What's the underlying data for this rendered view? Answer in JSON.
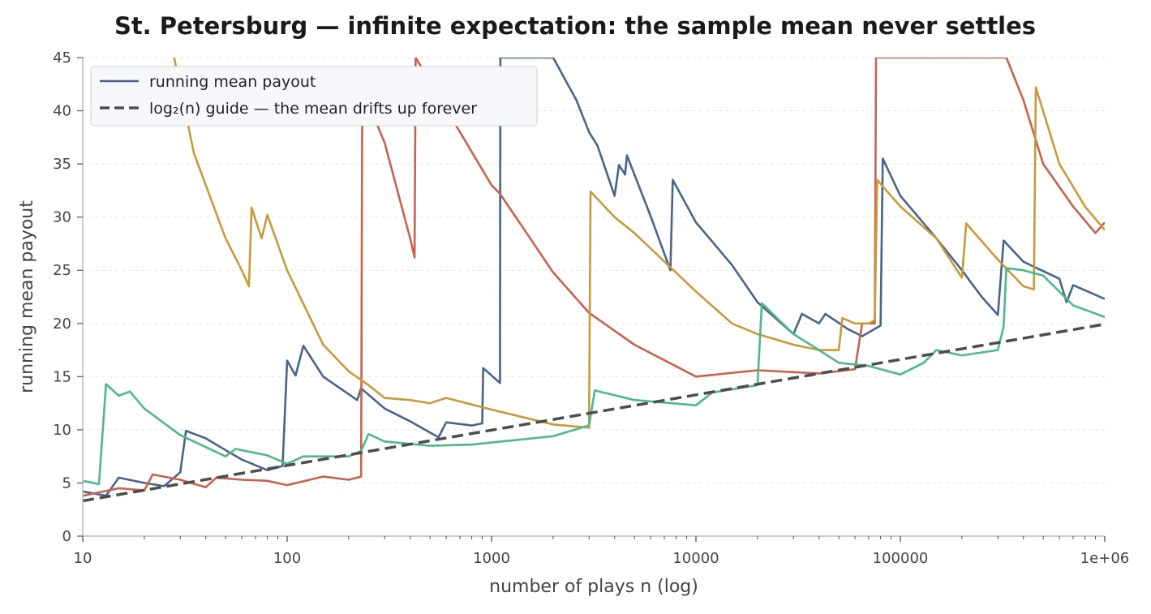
{
  "chart_data": {
    "type": "line",
    "title": "St. Petersburg — infinite expectation: the sample mean never settles",
    "xlabel": "number of plays n (log)",
    "ylabel": "running mean payout",
    "x_scale": "log",
    "xlim": [
      10,
      1000000
    ],
    "ylim": [
      0,
      45
    ],
    "x_ticks": [
      10,
      100,
      1000,
      10000,
      100000,
      1000000
    ],
    "x_tick_labels": [
      "10",
      "100",
      "1000",
      "10000",
      "100000",
      "1e+06"
    ],
    "y_ticks": [
      0,
      5,
      10,
      15,
      20,
      25,
      30,
      35,
      40,
      45
    ],
    "y_tick_labels": [
      "0",
      "5",
      "10",
      "15",
      "20",
      "25",
      "30",
      "35",
      "40",
      "45"
    ],
    "grid": "horizontal dashed",
    "legend_position": "top-left",
    "legend": [
      "running mean payout",
      "log₂(n) guide — the mean drifts up forever"
    ],
    "series": [
      {
        "name": "running mean payout",
        "color": "#4a6388",
        "points": [
          [
            10,
            4.2
          ],
          [
            13,
            3.8
          ],
          [
            15,
            5.5
          ],
          [
            20,
            5.0
          ],
          [
            25,
            4.7
          ],
          [
            30,
            6.0
          ],
          [
            32,
            9.9
          ],
          [
            40,
            9.2
          ],
          [
            45,
            8.6
          ],
          [
            60,
            7.2
          ],
          [
            80,
            6.2
          ],
          [
            95,
            6.6
          ],
          [
            100,
            16.5
          ],
          [
            110,
            15.1
          ],
          [
            120,
            17.9
          ],
          [
            150,
            15.0
          ],
          [
            220,
            12.8
          ],
          [
            230,
            13.9
          ],
          [
            300,
            12.0
          ],
          [
            400,
            10.8
          ],
          [
            550,
            9.3
          ],
          [
            600,
            10.7
          ],
          [
            800,
            10.4
          ],
          [
            900,
            10.6
          ],
          [
            910,
            15.8
          ],
          [
            1100,
            14.4
          ],
          [
            1105,
            45
          ],
          [
            2000,
            45
          ],
          [
            2600,
            41.0
          ],
          [
            3000,
            38.0
          ],
          [
            3300,
            36.7
          ],
          [
            4000,
            32.0
          ],
          [
            4200,
            34.9
          ],
          [
            4500,
            34.0
          ],
          [
            4600,
            35.8
          ],
          [
            6000,
            30.1
          ],
          [
            7500,
            25.0
          ],
          [
            7700,
            33.5
          ],
          [
            10000,
            29.5
          ],
          [
            15000,
            25.5
          ],
          [
            20000,
            22.0
          ],
          [
            30000,
            19.0
          ],
          [
            33000,
            20.9
          ],
          [
            40000,
            20.0
          ],
          [
            43000,
            20.9
          ],
          [
            55000,
            19.5
          ],
          [
            65000,
            18.8
          ],
          [
            80000,
            19.8
          ],
          [
            82000,
            35.5
          ],
          [
            100000,
            32.0
          ],
          [
            150000,
            28.0
          ],
          [
            200000,
            25.0
          ],
          [
            250000,
            22.5
          ],
          [
            300000,
            20.8
          ],
          [
            320000,
            27.8
          ],
          [
            400000,
            25.8
          ],
          [
            600000,
            24.2
          ],
          [
            650000,
            22.0
          ],
          [
            700000,
            23.6
          ],
          [
            1000000,
            22.3
          ]
        ]
      },
      {
        "name": "",
        "color": "#c7624f",
        "points": [
          [
            10,
            3.8
          ],
          [
            15,
            4.5
          ],
          [
            20,
            4.3
          ],
          [
            22,
            5.8
          ],
          [
            30,
            5.3
          ],
          [
            40,
            4.6
          ],
          [
            45,
            5.5
          ],
          [
            60,
            5.3
          ],
          [
            80,
            5.2
          ],
          [
            100,
            4.8
          ],
          [
            150,
            5.6
          ],
          [
            200,
            5.3
          ],
          [
            230,
            5.6
          ],
          [
            233,
            42.0
          ],
          [
            300,
            37.0
          ],
          [
            400,
            28.0
          ],
          [
            420,
            26.2
          ],
          [
            425,
            45
          ],
          [
            1000,
            33.0
          ],
          [
            1100,
            32.2
          ],
          [
            2000,
            24.8
          ],
          [
            3000,
            21.0
          ],
          [
            5000,
            18.0
          ],
          [
            10000,
            15.0
          ],
          [
            20000,
            15.6
          ],
          [
            40000,
            15.3
          ],
          [
            60000,
            15.7
          ],
          [
            65000,
            20.0
          ],
          [
            75000,
            20.0
          ],
          [
            76000,
            45
          ],
          [
            100000,
            45
          ],
          [
            200000,
            45
          ],
          [
            300000,
            45
          ],
          [
            330000,
            45
          ],
          [
            400000,
            41.0
          ],
          [
            500000,
            35.0
          ],
          [
            700000,
            31.0
          ],
          [
            900000,
            28.5
          ],
          [
            1000000,
            29.5
          ]
        ]
      },
      {
        "name": "",
        "color": "#c79a3c",
        "points": [
          [
            28,
            45
          ],
          [
            35,
            36.0
          ],
          [
            50,
            28.0
          ],
          [
            60,
            25.0
          ],
          [
            65,
            23.5
          ],
          [
            67,
            30.9
          ],
          [
            75,
            28.0
          ],
          [
            80,
            30.2
          ],
          [
            100,
            25.0
          ],
          [
            150,
            18.0
          ],
          [
            200,
            15.5
          ],
          [
            250,
            14.2
          ],
          [
            300,
            13.0
          ],
          [
            400,
            12.8
          ],
          [
            500,
            12.5
          ],
          [
            600,
            13.0
          ],
          [
            1000,
            11.9
          ],
          [
            2000,
            10.5
          ],
          [
            3000,
            10.2
          ],
          [
            3050,
            32.4
          ],
          [
            4000,
            30.0
          ],
          [
            5000,
            28.5
          ],
          [
            10000,
            23.0
          ],
          [
            15000,
            20.0
          ],
          [
            20000,
            19.0
          ],
          [
            30000,
            18.0
          ],
          [
            40000,
            17.5
          ],
          [
            50000,
            17.5
          ],
          [
            52000,
            20.5
          ],
          [
            60000,
            20.0
          ],
          [
            70000,
            20.0
          ],
          [
            75000,
            20.3
          ],
          [
            77000,
            33.5
          ],
          [
            100000,
            31.0
          ],
          [
            150000,
            28.0
          ],
          [
            200000,
            24.3
          ],
          [
            210000,
            29.4
          ],
          [
            300000,
            26.0
          ],
          [
            400000,
            23.5
          ],
          [
            450000,
            23.2
          ],
          [
            460000,
            42.2
          ],
          [
            600000,
            35.0
          ],
          [
            800000,
            31.0
          ],
          [
            1000000,
            28.8
          ]
        ]
      },
      {
        "name": "",
        "color": "#4db888",
        "points": [
          [
            10,
            5.2
          ],
          [
            12,
            4.9
          ],
          [
            13,
            14.3
          ],
          [
            15,
            13.2
          ],
          [
            17,
            13.6
          ],
          [
            20,
            12.0
          ],
          [
            30,
            9.5
          ],
          [
            50,
            7.5
          ],
          [
            56,
            8.2
          ],
          [
            80,
            7.6
          ],
          [
            100,
            6.8
          ],
          [
            120,
            7.5
          ],
          [
            200,
            7.5
          ],
          [
            230,
            8.0
          ],
          [
            250,
            9.6
          ],
          [
            300,
            8.9
          ],
          [
            500,
            8.5
          ],
          [
            800,
            8.6
          ],
          [
            1000,
            8.8
          ],
          [
            2000,
            9.4
          ],
          [
            3000,
            10.4
          ],
          [
            3200,
            13.7
          ],
          [
            5000,
            12.8
          ],
          [
            10000,
            12.3
          ],
          [
            12000,
            13.5
          ],
          [
            20000,
            14.2
          ],
          [
            21000,
            21.9
          ],
          [
            30000,
            19.0
          ],
          [
            40000,
            17.5
          ],
          [
            50000,
            16.3
          ],
          [
            70000,
            16.0
          ],
          [
            100000,
            15.2
          ],
          [
            130000,
            16.3
          ],
          [
            150000,
            17.5
          ],
          [
            200000,
            17.0
          ],
          [
            300000,
            17.5
          ],
          [
            320000,
            19.7
          ],
          [
            330000,
            25.2
          ],
          [
            400000,
            25.0
          ],
          [
            500000,
            24.5
          ],
          [
            700000,
            21.7
          ],
          [
            1000000,
            20.6
          ]
        ]
      },
      {
        "name": "log₂(n) guide — the mean drifts up forever",
        "color": "#4d4d4d",
        "dashed": true,
        "points": [
          [
            10,
            3.32
          ],
          [
            100,
            6.64
          ],
          [
            1000,
            9.97
          ],
          [
            10000,
            13.29
          ],
          [
            100000,
            16.61
          ],
          [
            1000000,
            19.93
          ]
        ]
      }
    ]
  }
}
